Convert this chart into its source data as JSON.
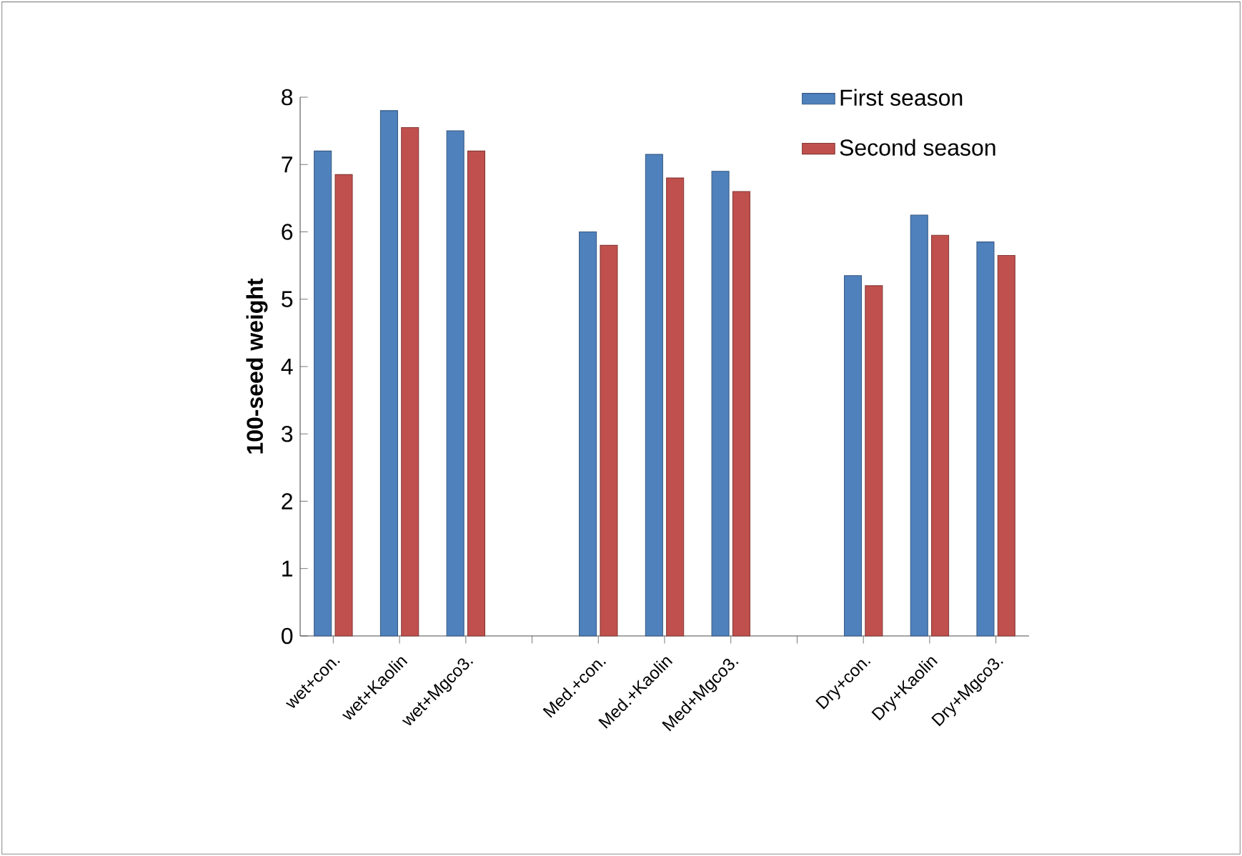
{
  "chart_data": {
    "type": "bar",
    "ylabel": "100-seed weight",
    "categories": [
      "wet+con.",
      "wet+Kaolin",
      "wet+Mgco3.",
      null,
      "Med.+con.",
      "Med.+Kaolin",
      "Med+Mgco3.",
      null,
      "Dry+con.",
      "Dry+Kaolin",
      "Dry+Mgco3."
    ],
    "series": [
      {
        "name": "First season",
        "color": "#4f81bd",
        "values": [
          7.2,
          7.8,
          7.5,
          null,
          6.0,
          7.15,
          6.9,
          null,
          5.35,
          6.25,
          5.85
        ]
      },
      {
        "name": "Second season",
        "color": "#c0504d",
        "values": [
          6.85,
          7.55,
          7.2,
          null,
          5.8,
          6.8,
          6.6,
          null,
          5.2,
          5.95,
          5.65
        ]
      }
    ],
    "ylim": [
      0,
      8
    ],
    "yticks": [
      0,
      1,
      2,
      3,
      4,
      5,
      6,
      7,
      8
    ],
    "legend": "top right",
    "grid": false
  }
}
